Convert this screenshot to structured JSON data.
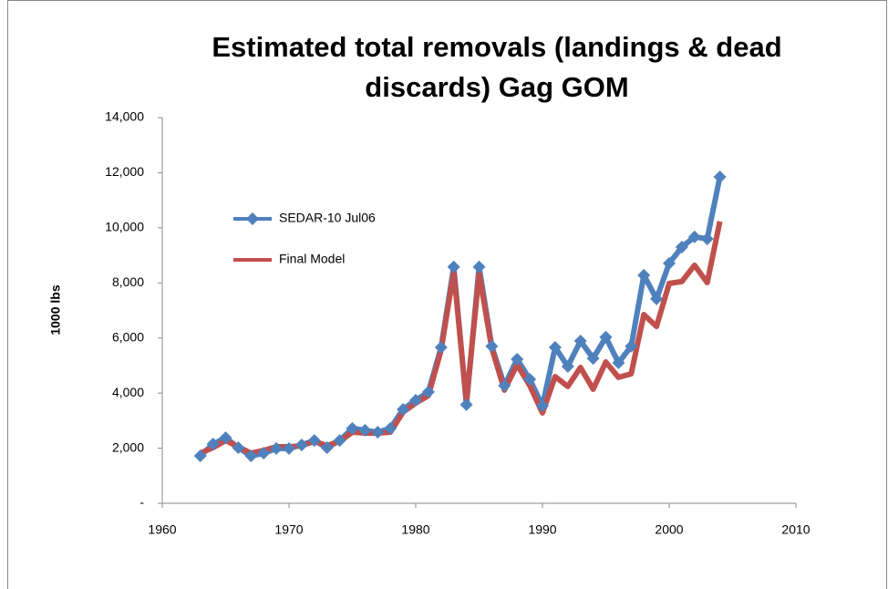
{
  "chart_data": {
    "type": "line",
    "title": "Estimated total removals (landings & dead discards) Gag GOM",
    "y_label": "1000 lbs",
    "x": [
      1963,
      1964,
      1965,
      1966,
      1967,
      1968,
      1969,
      1970,
      1971,
      1972,
      1973,
      1974,
      1975,
      1976,
      1977,
      1978,
      1979,
      1980,
      1981,
      1982,
      1983,
      1984,
      1985,
      1986,
      1987,
      1988,
      1989,
      1990,
      1991,
      1992,
      1993,
      1994,
      1995,
      1996,
      1997,
      1998,
      1999,
      2000,
      2001,
      2002,
      2003,
      2004
    ],
    "series": [
      {
        "name": "SEDAR-10 Jul06",
        "color": "#4f81bd",
        "marker": "diamond",
        "values": [
          1720,
          2150,
          2380,
          2020,
          1720,
          1820,
          1990,
          1990,
          2120,
          2280,
          2020,
          2280,
          2720,
          2650,
          2580,
          2720,
          3410,
          3740,
          4040,
          5660,
          8580,
          3580,
          8580,
          5700,
          4270,
          5230,
          4500,
          3540,
          5660,
          4970,
          5890,
          5260,
          6030,
          5100,
          5700,
          8280,
          7420,
          8710,
          9300,
          9670,
          9600,
          11850
        ]
      },
      {
        "name": "Final Model",
        "color": "#c0504d",
        "values": [
          1820,
          2020,
          2280,
          2050,
          1820,
          1920,
          2050,
          2050,
          2090,
          2250,
          2090,
          2250,
          2580,
          2550,
          2550,
          2580,
          3310,
          3640,
          3910,
          5560,
          8410,
          3680,
          8340,
          5630,
          4110,
          5030,
          4270,
          3280,
          4600,
          4240,
          4930,
          4140,
          5130,
          4570,
          4700,
          6850,
          6420,
          7980,
          8050,
          8640,
          8010,
          10230
        ]
      }
    ],
    "xlim": [
      1960,
      2010
    ],
    "xticks": [
      1960,
      1970,
      1980,
      1990,
      2000,
      2010
    ],
    "ylim": [
      0,
      14000
    ],
    "yticks": [
      {
        "value": 0,
        "label": "-"
      },
      {
        "value": 2000,
        "label": "2,000"
      },
      {
        "value": 4000,
        "label": "4,000"
      },
      {
        "value": 6000,
        "label": "6,000"
      },
      {
        "value": 8000,
        "label": "8,000"
      },
      {
        "value": 10000,
        "label": "10,000"
      },
      {
        "value": 12000,
        "label": "12,000"
      },
      {
        "value": 14000,
        "label": "14,000"
      }
    ],
    "grid": false,
    "legend": "center left"
  }
}
